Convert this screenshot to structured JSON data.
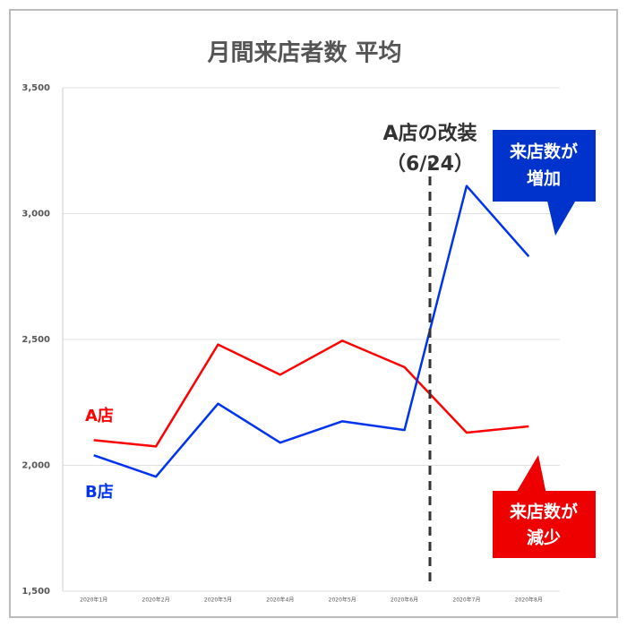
{
  "chart_data": {
    "type": "line",
    "title": "月間来店者数 平均",
    "categories": [
      "2020年1月",
      "2020年2月",
      "2020年3月",
      "2020年4月",
      "2020年5月",
      "2020年6月",
      "2020年7月",
      "2020年8月"
    ],
    "series": [
      {
        "name": "A店",
        "color": "#ff0000",
        "values": [
          2100,
          2075,
          2480,
          2360,
          2495,
          2390,
          2130,
          2155
        ]
      },
      {
        "name": "B店",
        "color": "#0033ee",
        "values": [
          2040,
          1955,
          2245,
          2090,
          2175,
          2140,
          3110,
          2830
        ]
      }
    ],
    "ylim": [
      1500,
      3500
    ],
    "yticks": [
      {
        "value": 1500,
        "label": "1,500"
      },
      {
        "value": 2000,
        "label": "2,000"
      },
      {
        "value": 2500,
        "label": "2,500"
      },
      {
        "value": 3000,
        "label": "3,000"
      },
      {
        "value": 3500,
        "label": "3,500"
      }
    ],
    "grid": true,
    "annotation": [
      "A店の改装",
      "（6/24）"
    ],
    "callouts": [
      {
        "lines": [
          "来店数が",
          "増加"
        ],
        "color": "#0033cc"
      },
      {
        "lines": [
          "来店数が",
          "減少"
        ],
        "color": "#ee0000"
      }
    ]
  }
}
